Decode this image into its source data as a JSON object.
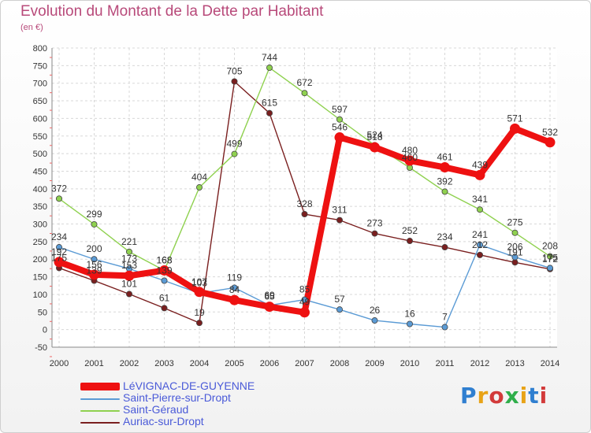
{
  "chart_data": {
    "type": "line",
    "title": "Evolution du Montant de la Dette par Habitant",
    "subtitle": "(en €)",
    "x": [
      2000,
      2001,
      2002,
      2003,
      2004,
      2005,
      2006,
      2007,
      2008,
      2009,
      2010,
      2011,
      2012,
      2013,
      2014
    ],
    "ylim": [
      -50,
      800
    ],
    "yticks": [
      -50,
      0,
      50,
      100,
      150,
      200,
      250,
      300,
      350,
      400,
      450,
      500,
      550,
      600,
      650,
      700,
      750,
      800
    ],
    "grid": true,
    "legend_position": "bottom-left",
    "series": [
      {
        "name": "LéVIGNAC-DE-GUYENNE",
        "color": "#ee1111",
        "values": [
          192,
          156,
          153,
          168,
          107,
          84,
          65,
          49,
          546,
          518,
          480,
          461,
          439,
          571,
          532
        ],
        "labels": [
          "192",
          "156",
          "153",
          "168",
          "107",
          "84",
          "65",
          "49",
          "546",
          "518",
          "480",
          "461",
          "439",
          "571",
          "532"
        ]
      },
      {
        "name": "Saint-Pierre-sur-Dropt",
        "color": "#5b9bd5",
        "values": [
          234,
          200,
          173,
          139,
          103,
          119,
          69,
          85,
          57,
          26,
          16,
          7,
          241,
          206,
          175
        ],
        "labels": [
          "234",
          "200",
          "173",
          "139",
          "103",
          "119",
          "69",
          "85",
          "57",
          "26",
          "16",
          "7",
          "241",
          "206",
          "175"
        ]
      },
      {
        "name": "Saint-Géraud",
        "color": "#8fd14f",
        "values": [
          372,
          299,
          221,
          168,
          404,
          499,
          744,
          672,
          597,
          524,
          460,
          392,
          341,
          275,
          208
        ],
        "labels": [
          "372",
          "299",
          "221",
          "168",
          "404",
          "499",
          "744",
          "672",
          "597",
          "524",
          "460",
          "392",
          "341",
          "275",
          "208"
        ]
      },
      {
        "name": "Auriac-sur-Dropt",
        "color": "#7a1f1f",
        "values": [
          175,
          139,
          101,
          61,
          19,
          705,
          615,
          328,
          311,
          273,
          252,
          234,
          212,
          191,
          172
        ],
        "labels": [
          "175",
          "139",
          "101",
          "61",
          "19",
          "705",
          "615",
          "328",
          "311",
          "273",
          "252",
          "234",
          "212",
          "191",
          "172"
        ]
      }
    ]
  },
  "logo_text": "Proxiti"
}
